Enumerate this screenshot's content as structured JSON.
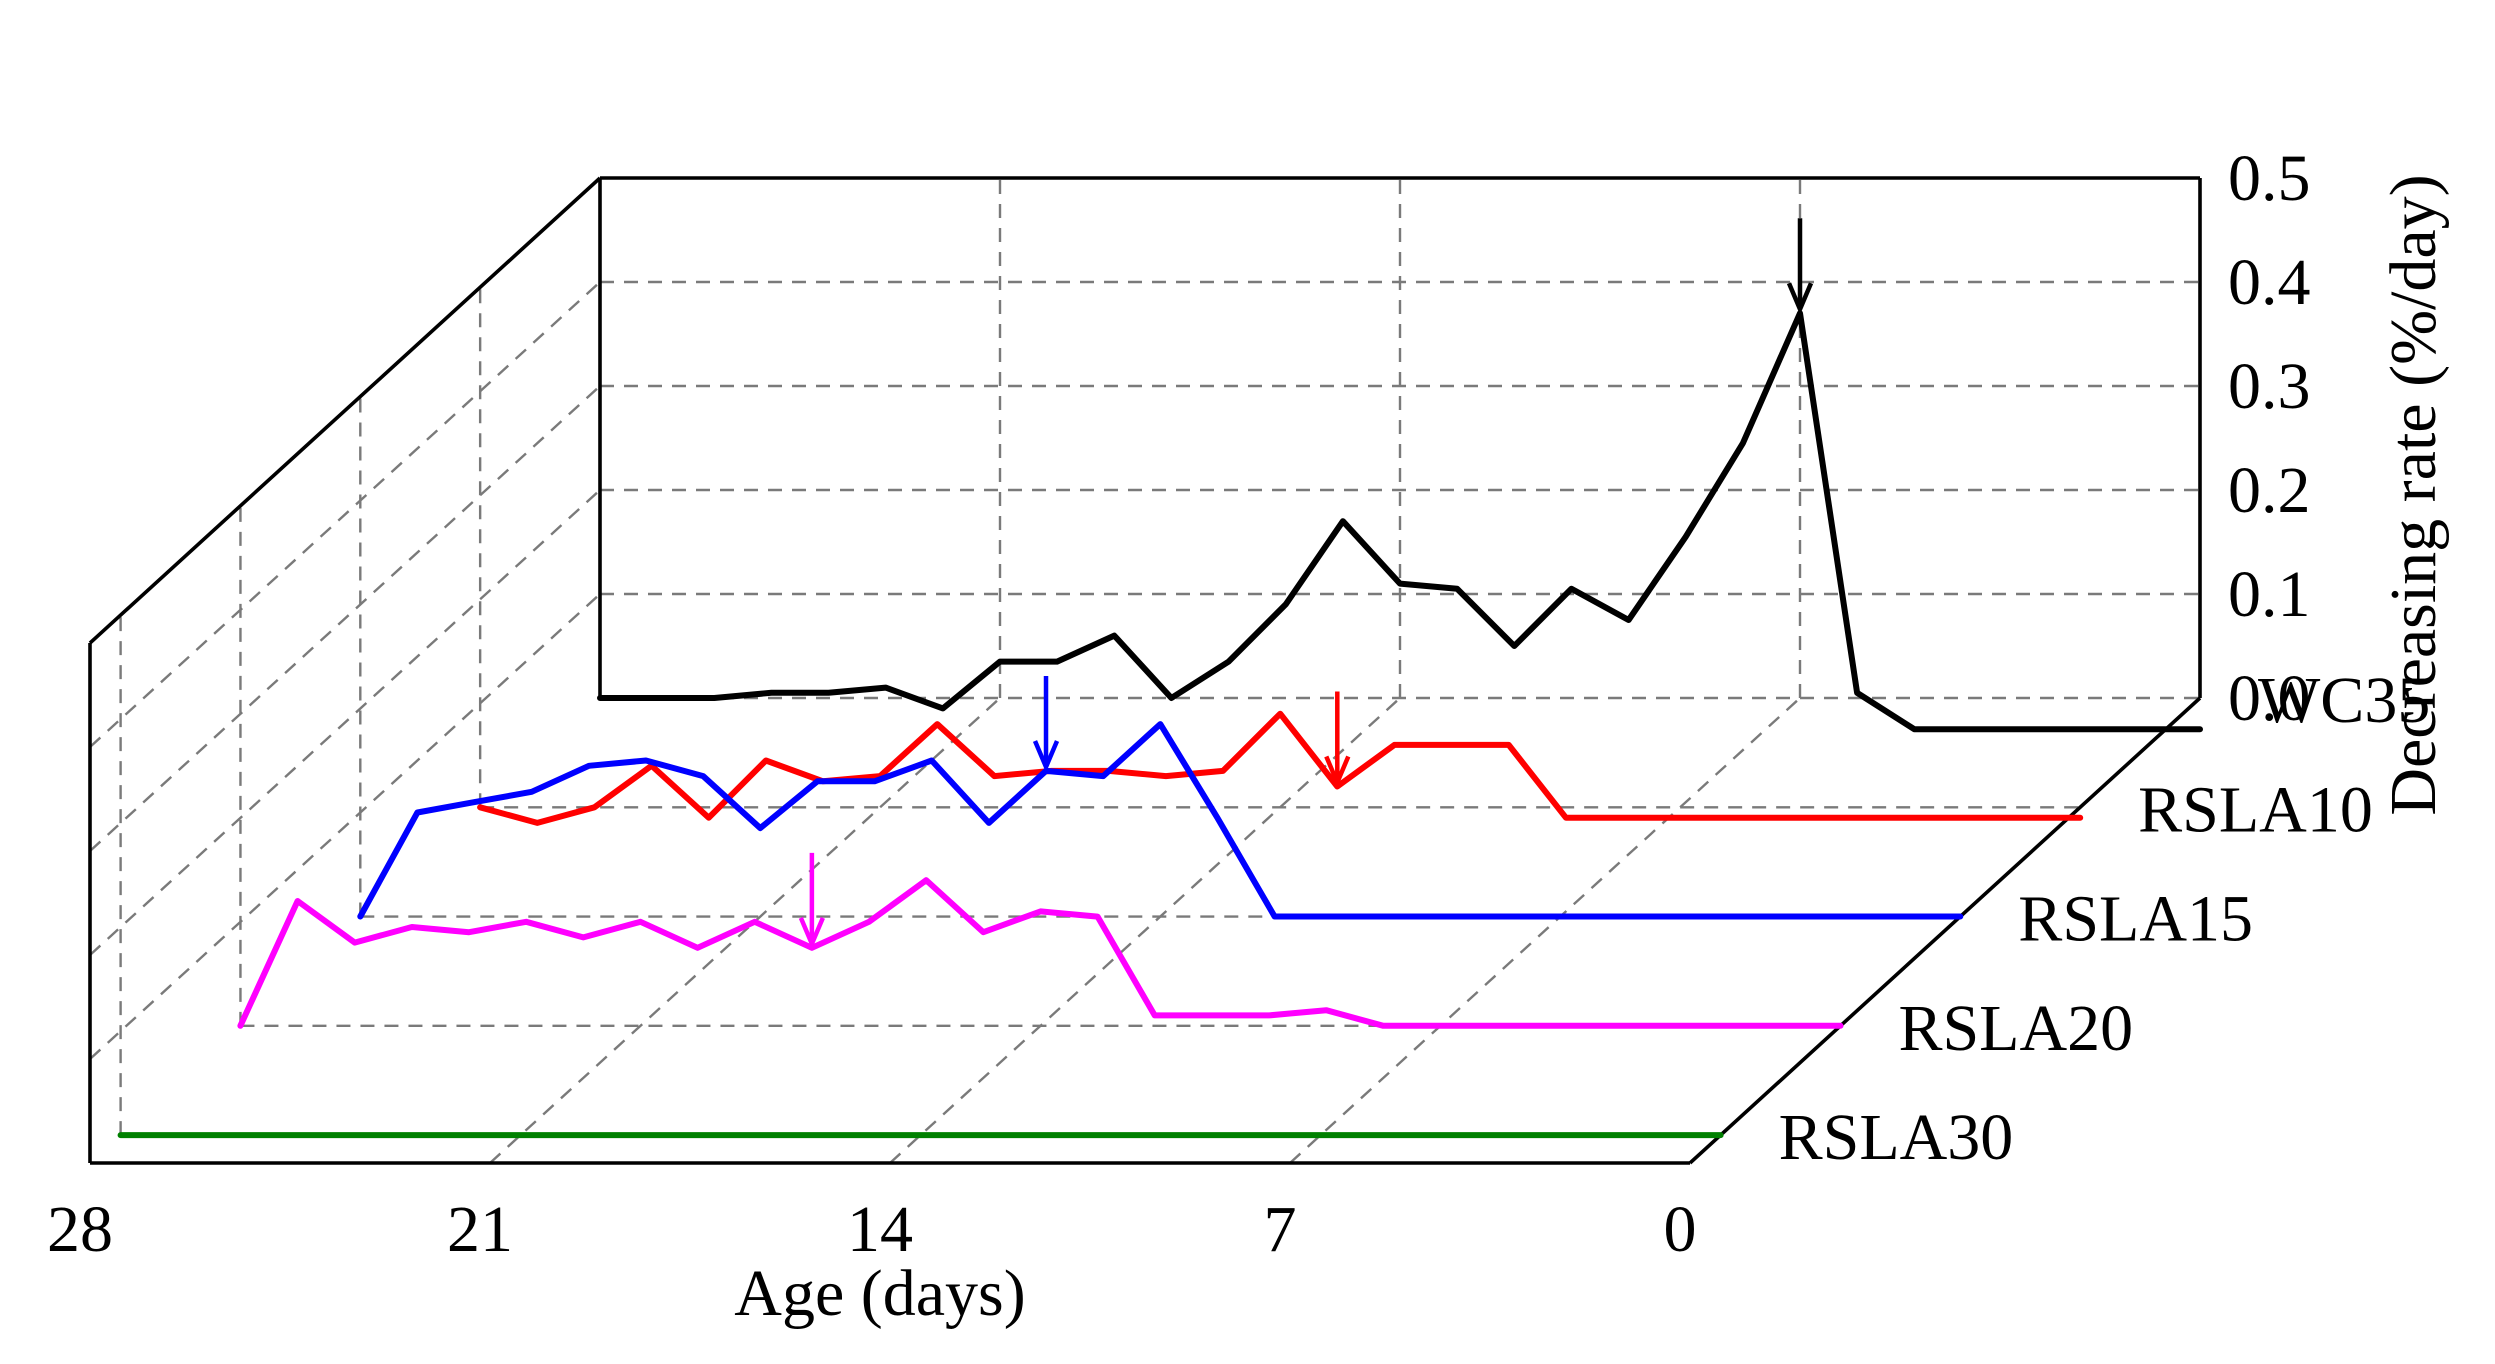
{
  "chart_data": {
    "type": "line",
    "style": "3d-waterfall",
    "xlabel": "Age (days)",
    "zlabel": "Decreasing rate (%/day)",
    "x_ticks": [
      "28",
      "21",
      "14",
      "7",
      "0"
    ],
    "x_tick_values": [
      28,
      21,
      14,
      7,
      0
    ],
    "z_ticks": [
      "0.0",
      "0.1",
      "0.2",
      "0.3",
      "0.4",
      "0.5"
    ],
    "z_tick_values": [
      0,
      0.1,
      0.2,
      0.3,
      0.4,
      0.5
    ],
    "xlim": [
      0,
      28
    ],
    "zlim": [
      0,
      0.5
    ],
    "series": [
      {
        "name": "WC35",
        "color": "#000000",
        "x": [
          28,
          27,
          26,
          25,
          24,
          23,
          22,
          21,
          20,
          19,
          18,
          17,
          16,
          15,
          14,
          13,
          12,
          11,
          10,
          9,
          8,
          7,
          6,
          5,
          4,
          3,
          2,
          1,
          0
        ],
        "values": [
          0.0,
          0.0,
          0.0,
          0.005,
          0.005,
          0.01,
          -0.01,
          0.035,
          0.035,
          0.06,
          0.0,
          0.035,
          0.09,
          0.17,
          0.11,
          0.105,
          0.05,
          0.105,
          0.075,
          0.155,
          0.245,
          0.37,
          0.005,
          -0.03,
          -0.03,
          -0.03,
          -0.03,
          -0.03,
          -0.03
        ],
        "peak_arrow_x": 7
      },
      {
        "name": "RSLA10",
        "color": "#ff0000",
        "x": [
          28,
          27,
          26,
          25,
          24,
          23,
          22,
          21,
          20,
          19,
          18,
          17,
          16,
          15,
          14,
          13,
          12,
          11,
          10,
          9,
          8,
          7,
          6,
          5,
          4,
          3,
          2,
          1,
          0
        ],
        "values": [
          0.0,
          -0.015,
          0.0,
          0.04,
          -0.01,
          0.045,
          0.025,
          0.03,
          0.08,
          0.03,
          0.035,
          0.035,
          0.03,
          0.035,
          0.09,
          0.02,
          0.06,
          0.06,
          0.06,
          -0.01,
          -0.01,
          -0.01,
          -0.01,
          -0.01,
          -0.01,
          -0.01,
          -0.01,
          -0.01,
          -0.01
        ],
        "peak_arrow_x": 13
      },
      {
        "name": "RSLA15",
        "color": "#0000ff",
        "x": [
          28,
          27,
          26,
          25,
          24,
          23,
          22,
          21,
          20,
          19,
          18,
          17,
          16,
          15,
          14,
          13,
          12,
          11,
          10,
          9,
          8,
          7,
          6,
          5,
          4,
          3,
          2,
          1,
          0
        ],
        "values": [
          0.0,
          0.1,
          0.11,
          0.12,
          0.145,
          0.15,
          0.135,
          0.085,
          0.13,
          0.13,
          0.15,
          0.09,
          0.14,
          0.135,
          0.185,
          0.095,
          0.0,
          0.0,
          0.0,
          0.0,
          0.0,
          0.0,
          0.0,
          0.0,
          0.0,
          0.0,
          0.0,
          0.0,
          0.0
        ],
        "peak_arrow_x": 16
      },
      {
        "name": "RSLA20",
        "color": "#ff00ff",
        "x": [
          28,
          27,
          26,
          25,
          24,
          23,
          22,
          21,
          20,
          19,
          18,
          17,
          16,
          15,
          14,
          13,
          12,
          11,
          10,
          9,
          8,
          7,
          6,
          5,
          4,
          3,
          2,
          1,
          0
        ],
        "values": [
          0.0,
          0.12,
          0.08,
          0.095,
          0.09,
          0.1,
          0.085,
          0.1,
          0.075,
          0.1,
          0.075,
          0.1,
          0.14,
          0.09,
          0.11,
          0.105,
          0.01,
          0.01,
          0.01,
          0.015,
          0.0,
          0.0,
          0.0,
          0.0,
          0.0,
          0.0,
          0.0,
          0.0,
          0.0
        ],
        "peak_arrow_x": 18
      },
      {
        "name": "RSLA30",
        "color": "#008000",
        "x": [
          28,
          0
        ],
        "values": [
          0.0,
          0.0
        ],
        "peak_arrow_x": null
      }
    ]
  }
}
